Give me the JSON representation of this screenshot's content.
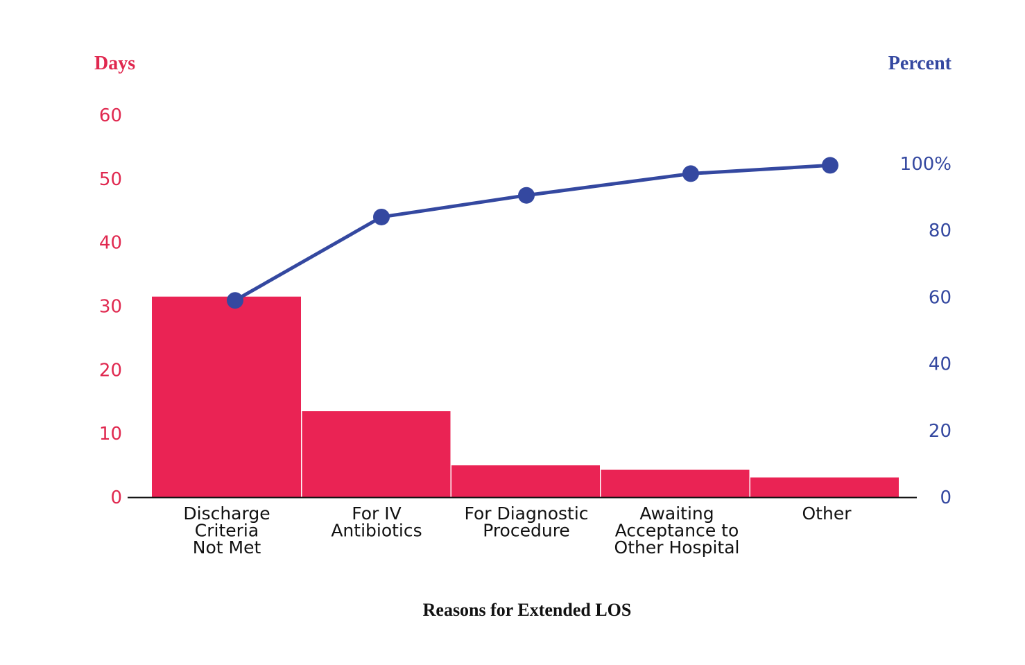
{
  "chart_data": {
    "type": "bar",
    "categories": [
      [
        "Discharge",
        "Criteria",
        "Not Met"
      ],
      [
        "For IV",
        "Antibiotics"
      ],
      [
        "For Diagnostic",
        "Procedure"
      ],
      [
        "Awaiting",
        "Acceptance to",
        "Other Hospital"
      ],
      [
        "Other"
      ]
    ],
    "series": [
      {
        "name": "Days",
        "type": "bar",
        "axis": "left",
        "values": [
          31.5,
          13.5,
          5,
          4.3,
          3.1
        ]
      },
      {
        "name": "Percent",
        "type": "line",
        "axis": "right",
        "values": [
          59,
          84,
          90.5,
          97,
          99.5
        ]
      }
    ],
    "xlabel": "Reasons for Extended LOS",
    "left_axis": {
      "label": "Days",
      "ticks": [
        "0",
        "10",
        "20",
        "30",
        "40",
        "50",
        "60"
      ],
      "ylim": [
        0,
        60
      ]
    },
    "right_axis": {
      "label": "Percent",
      "ticks": [
        "0",
        "20",
        "40",
        "60",
        "80",
        "100%"
      ],
      "ylim": [
        0,
        100
      ]
    },
    "colors": {
      "bars": "#ea2354",
      "line": "#3448a0",
      "left_axis_text": "#e0284f",
      "right_axis_text": "#3448a0",
      "axis_line": "#111111"
    }
  }
}
